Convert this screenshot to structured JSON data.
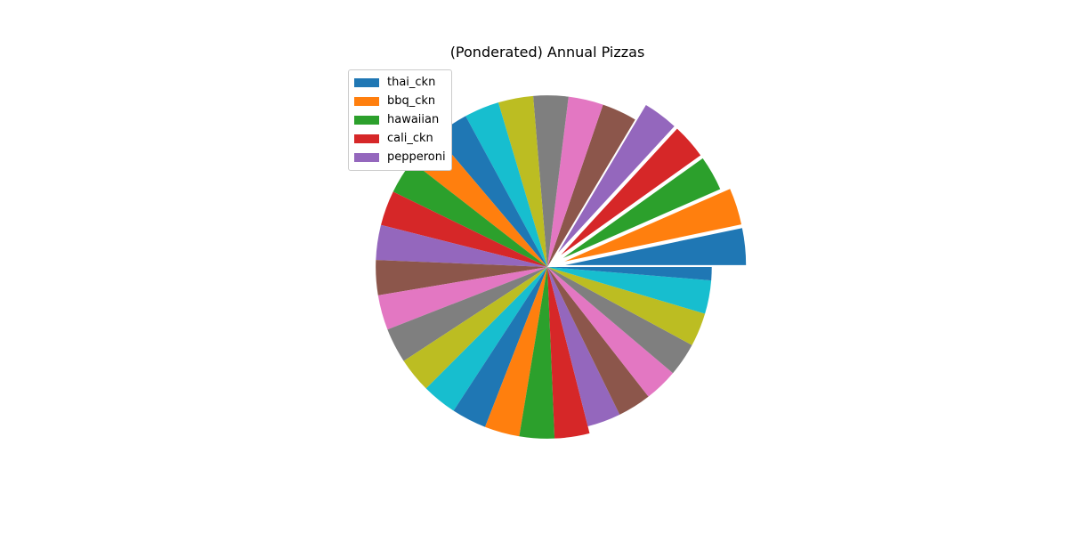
{
  "chart_data": {
    "type": "pie",
    "title": "(Ponderated) Annual Pizzas",
    "legend": {
      "placement": "upper-left",
      "entries": [
        "thai_ckn",
        "bbq_ckn",
        "hawaiian",
        "cali_ckn",
        "pepperoni"
      ]
    },
    "palette": [
      "#1f77b4",
      "#ff7f0e",
      "#2ca02c",
      "#d62728",
      "#9467bd",
      "#8c564b",
      "#e377c2",
      "#7f7f7f",
      "#bcbd22",
      "#17becf"
    ],
    "start_angle_deg": 0,
    "direction": "counterclockwise",
    "slices": [
      {
        "value": 3.29,
        "radius": 1.0,
        "explode": 0.1
      },
      {
        "value": 3.29,
        "radius": 1.0,
        "explode": 0.1
      },
      {
        "value": 3.29,
        "radius": 0.95,
        "explode": 0.1
      },
      {
        "value": 3.29,
        "radius": 0.95,
        "explode": 0.1
      },
      {
        "value": 3.29,
        "radius": 0.95,
        "explode": 0.1
      },
      {
        "value": 3.29,
        "radius": 0.95,
        "explode": 0
      },
      {
        "value": 3.29,
        "radius": 0.95,
        "explode": 0
      },
      {
        "value": 3.29,
        "radius": 0.95,
        "explode": 0
      },
      {
        "value": 3.29,
        "radius": 0.95,
        "explode": 0
      },
      {
        "value": 3.29,
        "radius": 0.95,
        "explode": 0
      },
      {
        "value": 3.29,
        "radius": 0.95,
        "explode": 0
      },
      {
        "value": 3.29,
        "radius": 0.95,
        "explode": 0
      },
      {
        "value": 3.29,
        "radius": 0.95,
        "explode": 0
      },
      {
        "value": 3.29,
        "radius": 0.95,
        "explode": 0
      },
      {
        "value": 3.29,
        "radius": 0.95,
        "explode": 0
      },
      {
        "value": 3.29,
        "radius": 0.95,
        "explode": 0
      },
      {
        "value": 3.29,
        "radius": 0.95,
        "explode": 0
      },
      {
        "value": 3.29,
        "radius": 0.95,
        "explode": 0
      },
      {
        "value": 3.29,
        "radius": 0.95,
        "explode": 0
      },
      {
        "value": 3.29,
        "radius": 0.95,
        "explode": 0
      },
      {
        "value": 3.29,
        "radius": 0.95,
        "explode": 0
      },
      {
        "value": 3.29,
        "radius": 0.95,
        "explode": 0
      },
      {
        "value": 3.29,
        "radius": 0.95,
        "explode": 0
      },
      {
        "value": 3.29,
        "radius": 0.95,
        "explode": 0
      },
      {
        "value": 3.29,
        "radius": 0.91,
        "explode": 0
      },
      {
        "value": 3.29,
        "radius": 0.91,
        "explode": 0
      },
      {
        "value": 3.29,
        "radius": 0.91,
        "explode": 0
      },
      {
        "value": 3.29,
        "radius": 0.91,
        "explode": 0
      },
      {
        "value": 3.29,
        "radius": 0.91,
        "explode": 0
      },
      {
        "value": 3.29,
        "radius": 0.91,
        "explode": 0
      },
      {
        "value": 1.3,
        "radius": 0.91,
        "explode": 0
      }
    ]
  }
}
